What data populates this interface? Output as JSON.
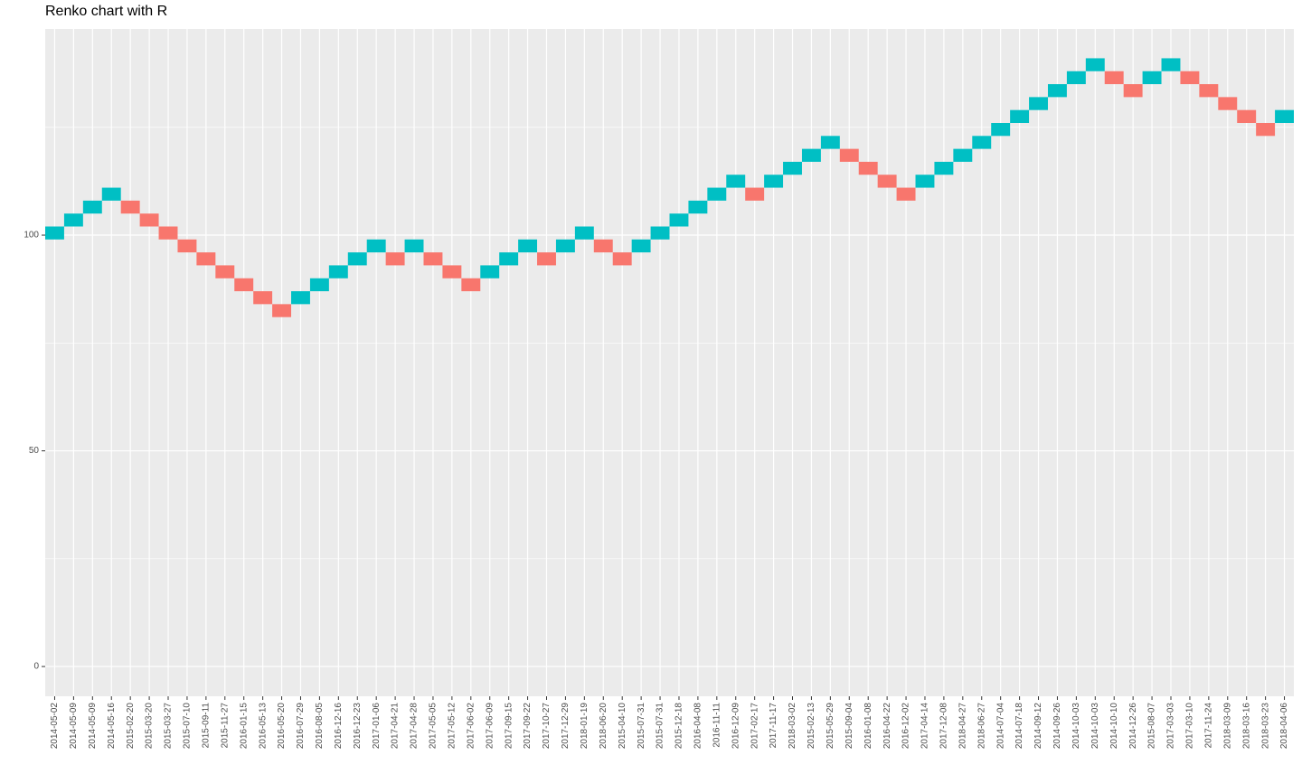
{
  "chart_data": {
    "type": "renko",
    "title": "Renko chart with R",
    "categories": [
      "2014-05-02",
      "2014-05-09",
      "2014-05-09",
      "2014-05-16",
      "2015-02-20",
      "2015-03-20",
      "2015-03-27",
      "2015-07-10",
      "2015-09-11",
      "2015-11-27",
      "2016-01-15",
      "2016-05-13",
      "2016-05-20",
      "2016-07-29",
      "2016-08-05",
      "2016-12-16",
      "2016-12-23",
      "2017-01-06",
      "2017-04-21",
      "2017-04-28",
      "2017-05-05",
      "2017-05-12",
      "2017-06-02",
      "2017-06-09",
      "2017-09-15",
      "2017-09-22",
      "2017-10-27",
      "2017-12-29",
      "2018-01-19",
      "2018-06-20",
      "2015-04-10",
      "2015-07-31",
      "2015-07-31",
      "2015-12-18",
      "2016-04-08",
      "2016-11-11",
      "2016-12-09",
      "2017-02-17",
      "2017-11-17",
      "2018-03-02",
      "2015-02-13",
      "2015-05-29",
      "2015-09-04",
      "2016-01-08",
      "2016-04-22",
      "2016-12-02",
      "2017-04-14",
      "2017-12-08",
      "2018-04-27",
      "2018-06-27",
      "2014-07-04",
      "2014-07-18",
      "2014-09-12",
      "2014-09-26",
      "2014-10-03",
      "2014-10-03",
      "2014-10-10",
      "2014-12-26",
      "2015-08-07",
      "2017-03-03",
      "2017-03-10",
      "2017-11-24",
      "2018-03-09",
      "2018-03-16",
      "2018-03-23",
      "2018-04-06"
    ],
    "open": [
      99,
      102,
      105,
      108,
      108,
      105,
      102,
      99,
      96,
      93,
      90,
      87,
      84,
      84,
      87,
      90,
      93,
      96,
      96,
      96,
      96,
      93,
      90,
      90,
      93,
      96,
      96,
      96,
      99,
      99,
      96,
      96,
      99,
      102,
      105,
      108,
      111,
      111,
      111,
      114,
      117,
      120,
      120,
      117,
      114,
      111,
      111,
      114,
      117,
      120,
      123,
      126,
      129,
      132,
      135,
      138,
      138,
      135,
      135,
      138,
      138,
      135,
      132,
      129,
      126,
      126
    ],
    "close": [
      102,
      105,
      108,
      111,
      105,
      102,
      99,
      96,
      93,
      90,
      87,
      84,
      81,
      87,
      90,
      93,
      96,
      99,
      93,
      99,
      93,
      90,
      87,
      93,
      96,
      99,
      93,
      99,
      102,
      96,
      93,
      99,
      102,
      105,
      108,
      111,
      114,
      108,
      114,
      117,
      120,
      123,
      117,
      114,
      111,
      108,
      114,
      117,
      120,
      123,
      126,
      129,
      132,
      135,
      138,
      141,
      135,
      132,
      138,
      141,
      135,
      132,
      129,
      126,
      123,
      129
    ],
    "up_color": "#00BFC4",
    "down_color": "#F8766D",
    "ylim": [
      -6.9,
      147.8
    ],
    "yticks": [
      0,
      50,
      100
    ],
    "grid": true
  }
}
